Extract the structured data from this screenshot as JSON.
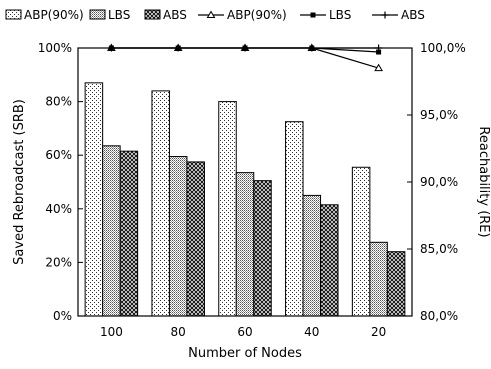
{
  "chart_data": {
    "type": "bar",
    "xlabel": "Number of Nodes",
    "ylabel_left": "Saved Rebroadcast (SRB)",
    "ylabel_right": "Reachability (RE)",
    "categories": [
      "100",
      "80",
      "60",
      "40",
      "20"
    ],
    "left_axis": {
      "ylim": [
        0,
        100
      ],
      "ticks": [
        0,
        20,
        40,
        60,
        80,
        100
      ],
      "tick_labels": [
        "0%",
        "20%",
        "40%",
        "60%",
        "80%",
        "100%"
      ]
    },
    "right_axis": {
      "ylim": [
        80,
        100
      ],
      "ticks": [
        80,
        85,
        90,
        95,
        100
      ],
      "tick_labels": [
        "80,0%",
        "85,0%",
        "90,0%",
        "95,0%",
        "100,0%"
      ]
    },
    "series": [
      {
        "name": "ABP(90%)",
        "kind": "bar",
        "axis": "left",
        "pattern": "sparse-dots",
        "values": [
          87,
          84,
          80,
          72.5,
          55.5
        ]
      },
      {
        "name": "LBS",
        "kind": "bar",
        "axis": "left",
        "pattern": "dense-dots",
        "values": [
          63.5,
          59.5,
          53.5,
          45,
          27.5
        ]
      },
      {
        "name": "ABS",
        "kind": "bar",
        "axis": "left",
        "pattern": "crosshatch",
        "values": [
          61.5,
          57.5,
          50.5,
          41.5,
          24
        ]
      },
      {
        "name": "ABP(90%)",
        "kind": "line",
        "axis": "right",
        "marker": "triangle",
        "values": [
          100,
          100,
          100,
          100,
          98.5
        ]
      },
      {
        "name": "LBS",
        "kind": "line",
        "axis": "right",
        "marker": "square",
        "values": [
          100,
          100,
          100,
          100,
          99.7
        ]
      },
      {
        "name": "ABS",
        "kind": "line",
        "axis": "right",
        "marker": "plus",
        "values": [
          100,
          100,
          100,
          100,
          100
        ]
      }
    ],
    "legend_position": "top",
    "grid": false
  }
}
